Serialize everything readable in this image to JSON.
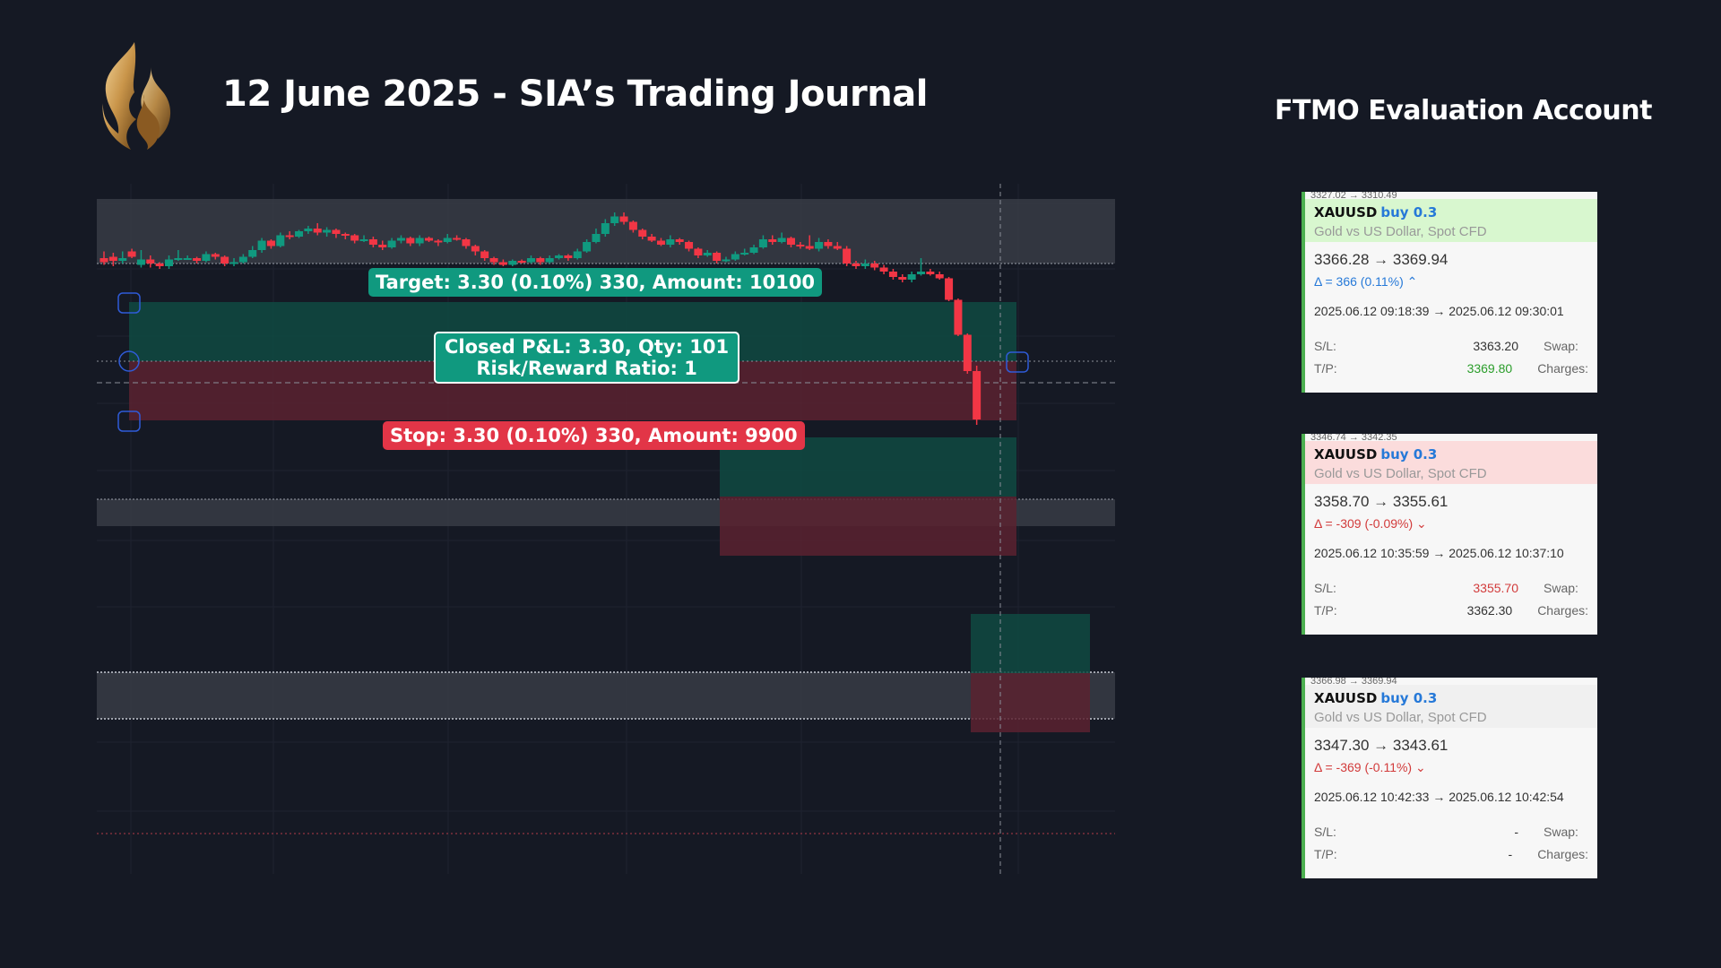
{
  "header": {
    "title": "12 June 2025 - SIA’s Trading Journal",
    "account": "FTMO Evaluation Account"
  },
  "colors": {
    "background": "#151924",
    "bull": "#10997f",
    "bear": "#f23645",
    "zone": "#3a3d47",
    "target_zone": "#0f4a42",
    "stop_zone": "#5a2230",
    "logo_gold": "#c9a15a"
  },
  "chart_labels": {
    "target": "Target: 3.30 (0.10%) 330, Amount: 10100",
    "stop": "Stop: 3.30 (0.10%) 330, Amount: 9900",
    "pnl_line1": "Closed P&L: 3.30, Qty: 101",
    "pnl_line2": "Risk/Reward Ratio: 1"
  },
  "chart_data": {
    "type": "candlestick",
    "candles": [
      [
        0.18,
        0.15,
        0.23,
        0.13
      ],
      [
        0.19,
        0.16,
        0.22,
        0.12
      ],
      [
        0.16,
        0.18,
        0.23,
        0.14
      ],
      [
        0.23,
        0.19,
        0.25,
        0.18
      ],
      [
        0.13,
        0.17,
        0.24,
        0.11
      ],
      [
        0.17,
        0.14,
        0.2,
        0.11
      ],
      [
        0.14,
        0.12,
        0.15,
        0.1
      ],
      [
        0.12,
        0.17,
        0.2,
        0.1
      ],
      [
        0.17,
        0.18,
        0.24,
        0.16
      ],
      [
        0.18,
        0.18,
        0.2,
        0.17
      ],
      [
        0.18,
        0.16,
        0.19,
        0.14
      ],
      [
        0.16,
        0.21,
        0.23,
        0.15
      ],
      [
        0.21,
        0.19,
        0.22,
        0.17
      ],
      [
        0.19,
        0.14,
        0.2,
        0.12
      ],
      [
        0.14,
        0.15,
        0.18,
        0.12
      ],
      [
        0.15,
        0.19,
        0.21,
        0.14
      ],
      [
        0.19,
        0.24,
        0.27,
        0.18
      ],
      [
        0.24,
        0.31,
        0.33,
        0.22
      ],
      [
        0.31,
        0.27,
        0.32,
        0.25
      ],
      [
        0.27,
        0.35,
        0.37,
        0.26
      ],
      [
        0.35,
        0.34,
        0.38,
        0.32
      ],
      [
        0.34,
        0.38,
        0.39,
        0.33
      ],
      [
        0.38,
        0.4,
        0.42,
        0.36
      ],
      [
        0.4,
        0.37,
        0.44,
        0.35
      ],
      [
        0.37,
        0.39,
        0.41,
        0.34
      ],
      [
        0.39,
        0.36,
        0.4,
        0.33
      ],
      [
        0.36,
        0.35,
        0.37,
        0.32
      ],
      [
        0.35,
        0.31,
        0.36,
        0.29
      ],
      [
        0.31,
        0.32,
        0.35,
        0.3
      ],
      [
        0.32,
        0.28,
        0.34,
        0.26
      ],
      [
        0.28,
        0.26,
        0.31,
        0.24
      ],
      [
        0.26,
        0.31,
        0.33,
        0.25
      ],
      [
        0.31,
        0.33,
        0.35,
        0.29
      ],
      [
        0.33,
        0.29,
        0.34,
        0.27
      ],
      [
        0.29,
        0.33,
        0.35,
        0.27
      ],
      [
        0.33,
        0.31,
        0.34,
        0.3
      ],
      [
        0.31,
        0.3,
        0.32,
        0.27
      ],
      [
        0.3,
        0.33,
        0.36,
        0.29
      ],
      [
        0.33,
        0.32,
        0.35,
        0.31
      ],
      [
        0.32,
        0.27,
        0.33,
        0.25
      ],
      [
        0.27,
        0.23,
        0.28,
        0.2
      ],
      [
        0.23,
        0.18,
        0.24,
        0.16
      ],
      [
        0.18,
        0.15,
        0.19,
        0.13
      ],
      [
        0.15,
        0.13,
        0.17,
        0.12
      ],
      [
        0.13,
        0.16,
        0.17,
        0.12
      ],
      [
        0.16,
        0.15,
        0.17,
        0.14
      ],
      [
        0.15,
        0.18,
        0.2,
        0.14
      ],
      [
        0.18,
        0.15,
        0.19,
        0.13
      ],
      [
        0.15,
        0.18,
        0.2,
        0.14
      ],
      [
        0.18,
        0.2,
        0.21,
        0.17
      ],
      [
        0.2,
        0.18,
        0.21,
        0.16
      ],
      [
        0.18,
        0.23,
        0.25,
        0.17
      ],
      [
        0.23,
        0.3,
        0.32,
        0.22
      ],
      [
        0.3,
        0.36,
        0.4,
        0.29
      ],
      [
        0.36,
        0.44,
        0.47,
        0.34
      ],
      [
        0.44,
        0.49,
        0.52,
        0.42
      ],
      [
        0.49,
        0.45,
        0.52,
        0.43
      ],
      [
        0.45,
        0.39,
        0.46,
        0.37
      ],
      [
        0.39,
        0.34,
        0.4,
        0.32
      ],
      [
        0.34,
        0.31,
        0.36,
        0.3
      ],
      [
        0.31,
        0.28,
        0.33,
        0.27
      ],
      [
        0.28,
        0.32,
        0.35,
        0.26
      ],
      [
        0.32,
        0.3,
        0.33,
        0.28
      ],
      [
        0.3,
        0.25,
        0.31,
        0.23
      ],
      [
        0.25,
        0.2,
        0.26,
        0.18
      ],
      [
        0.2,
        0.22,
        0.24,
        0.19
      ],
      [
        0.22,
        0.16,
        0.23,
        0.14
      ],
      [
        0.16,
        0.17,
        0.19,
        0.15
      ],
      [
        0.17,
        0.21,
        0.23,
        0.16
      ],
      [
        0.21,
        0.22,
        0.25,
        0.2
      ],
      [
        0.22,
        0.26,
        0.28,
        0.21
      ],
      [
        0.26,
        0.32,
        0.35,
        0.25
      ],
      [
        0.32,
        0.3,
        0.35,
        0.28
      ],
      [
        0.3,
        0.33,
        0.37,
        0.29
      ],
      [
        0.33,
        0.28,
        0.34,
        0.26
      ],
      [
        0.28,
        0.27,
        0.3,
        0.25
      ],
      [
        0.27,
        0.25,
        0.35,
        0.24
      ],
      [
        0.25,
        0.3,
        0.33,
        0.23
      ],
      [
        0.3,
        0.27,
        0.32,
        0.25
      ],
      [
        0.27,
        0.25,
        0.3,
        0.24
      ],
      [
        0.25,
        0.14,
        0.27,
        0.12
      ],
      [
        0.14,
        0.12,
        0.16,
        0.1
      ],
      [
        0.12,
        0.14,
        0.17,
        0.1
      ],
      [
        0.14,
        0.11,
        0.16,
        0.09
      ],
      [
        0.11,
        0.08,
        0.13,
        0.06
      ],
      [
        0.08,
        0.04,
        0.1,
        0.02
      ],
      [
        0.04,
        0.02,
        0.06,
        0.0
      ],
      [
        0.02,
        0.06,
        0.08,
        0.0
      ],
      [
        0.06,
        0.08,
        0.18,
        0.05
      ],
      [
        0.08,
        0.06,
        0.1,
        0.05
      ],
      [
        0.06,
        0.03,
        0.08,
        0.02
      ],
      [
        0.03,
        -0.13,
        0.04,
        -0.14
      ],
      [
        -0.13,
        -0.39,
        -0.12,
        -0.4
      ],
      [
        -0.39,
        -0.66,
        -0.38,
        -0.68
      ],
      [
        -0.66,
        -1.02,
        -0.62,
        -1.06
      ]
    ]
  },
  "trades": [
    {
      "cut": "3327.02 → 3310.49",
      "symbol": "XAUUSD",
      "side": "buy 0.3",
      "desc": "Gold vs US Dollar, Spot CFD",
      "head_bg": "#d8f7cf",
      "prices": "3366.28 → 3369.94",
      "delta": "Δ = 366 (0.11%) ⌃",
      "delta_color": "#2679d8",
      "times": "2025.06.12 09:18:39 → 2025.06.12 09:30:01",
      "sl_label": "S/L:",
      "sl": "3363.20",
      "sl_color": "#333",
      "tp_label": "T/P:",
      "tp": "3369.80",
      "tp_color": "#2a9d2a",
      "swap_label": "Swap:",
      "charges_label": "Charges:"
    },
    {
      "cut": "3346.74 → 3342.35",
      "symbol": "XAUUSD",
      "side": "buy 0.3",
      "desc": "Gold vs US Dollar, Spot CFD",
      "head_bg": "#fbdcdc",
      "prices": "3358.70 → 3355.61",
      "delta": "Δ = -309 (-0.09%) ⌄",
      "delta_color": "#d23b3b",
      "times": "2025.06.12 10:35:59 → 2025.06.12 10:37:10",
      "sl_label": "S/L:",
      "sl": "3355.70",
      "sl_color": "#d23b3b",
      "tp_label": "T/P:",
      "tp": "3362.30",
      "tp_color": "#333",
      "swap_label": "Swap:",
      "charges_label": "Charges:"
    },
    {
      "cut": "3366.98 → 3369.94",
      "symbol": "XAUUSD",
      "side": "buy 0.3",
      "desc": "Gold vs US Dollar, Spot CFD",
      "head_bg": "#f0f0f0",
      "prices": "3347.30 → 3343.61",
      "delta": "Δ = -369 (-0.11%) ⌄",
      "delta_color": "#d23b3b",
      "times": "2025.06.12 10:42:33 → 2025.06.12 10:42:54",
      "sl_label": "S/L:",
      "sl": "-",
      "sl_color": "#333",
      "tp_label": "T/P:",
      "tp": "-",
      "tp_color": "#333",
      "swap_label": "Swap:",
      "charges_label": "Charges:"
    }
  ]
}
